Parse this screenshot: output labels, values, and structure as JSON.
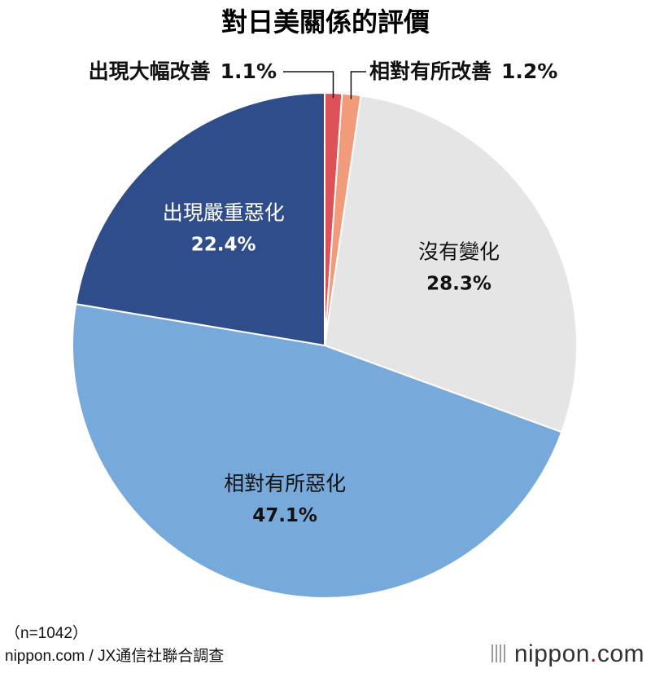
{
  "title": "對日美關係的評價",
  "chart_data": {
    "type": "pie",
    "title": "對日美關係的評價",
    "unit": "%",
    "slices": [
      {
        "label": "出現大幅改善",
        "value": 1.1,
        "value_text": "1.1%",
        "color": "#dd5159",
        "label_text_color": "#111111"
      },
      {
        "label": "相對有所改善",
        "value": 1.2,
        "value_text": "1.2%",
        "color": "#f29b7a",
        "label_text_color": "#111111"
      },
      {
        "label": "沒有變化",
        "value": 28.3,
        "value_text": "28.3%",
        "color": "#e5e5e5",
        "label_text_color": "#111111"
      },
      {
        "label": "相對有所惡化",
        "value": 47.1,
        "value_text": "47.1%",
        "color": "#78a9db",
        "label_text_color": "#111111"
      },
      {
        "label": "出現嚴重惡化",
        "value": 22.4,
        "value_text": "22.4%",
        "color": "#2f4d8a",
        "label_text_color": "#ffffff"
      }
    ]
  },
  "footer": {
    "note": "（n=1042）",
    "source": "nippon.com / JX通信社聯合調查",
    "brand_name": "nippon",
    "brand_dot": ".",
    "brand_tld": "com"
  }
}
